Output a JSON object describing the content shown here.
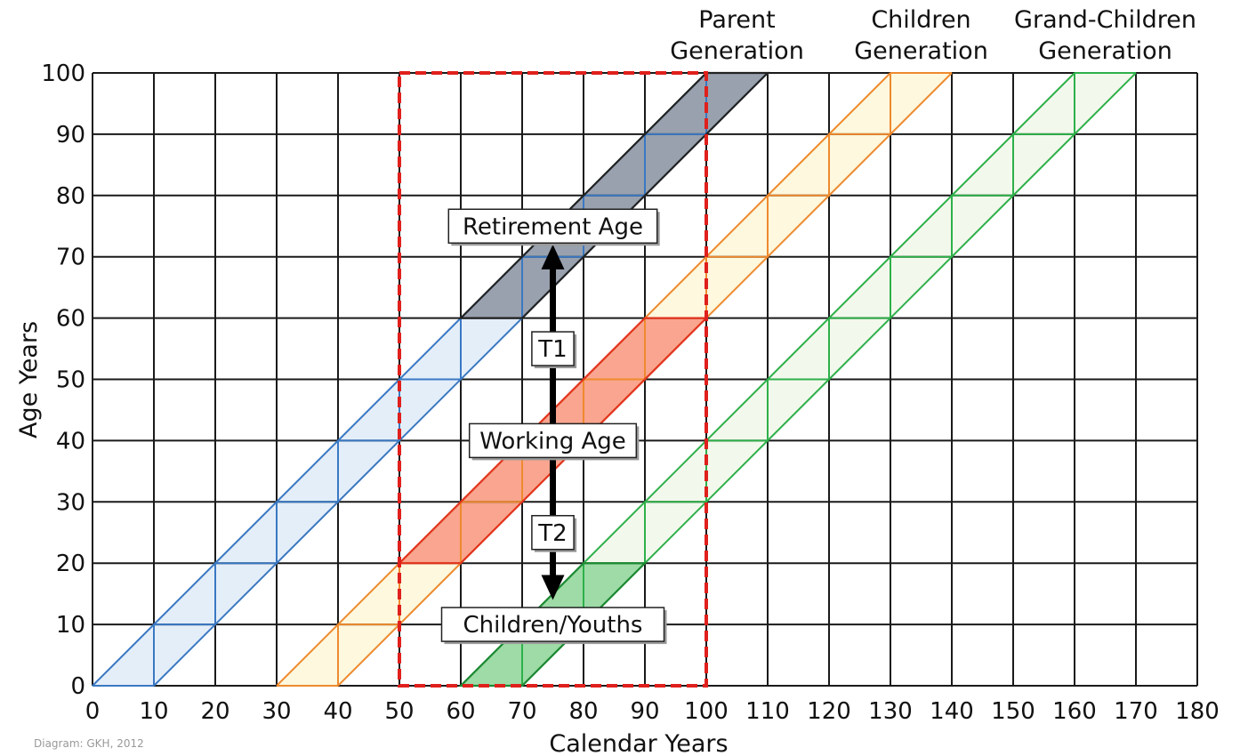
{
  "chart_data": {
    "type": "diagram",
    "xlabel": "Calendar Years",
    "ylabel": "Age Years",
    "xlim": [
      0,
      180
    ],
    "ylim": [
      0,
      100
    ],
    "x_ticks": [
      0,
      10,
      20,
      30,
      40,
      50,
      60,
      70,
      80,
      90,
      100,
      110,
      120,
      130,
      140,
      150,
      160,
      170,
      180
    ],
    "y_ticks": [
      0,
      10,
      20,
      30,
      40,
      50,
      60,
      70,
      80,
      90,
      100
    ],
    "grid": true,
    "highlight_window": {
      "x": [
        50,
        100
      ],
      "y": [
        0,
        100
      ],
      "color": "#e0201c",
      "style": "dashed"
    },
    "cohorts": [
      {
        "name": "Parent Generation",
        "birth_start": 0,
        "birth_end": 10,
        "line_color": "#3a78c2",
        "fill_color": "#ddeaf7",
        "fill_opacity": 0.8,
        "label_at": 105
      },
      {
        "name": "Children Generation",
        "birth_start": 30,
        "birth_end": 40,
        "line_color": "#ee8a2e",
        "fill_color": "#fdf6d6",
        "fill_opacity": 0.8,
        "label_at": 135
      },
      {
        "name": "Grand-Children Generation",
        "birth_start": 60,
        "birth_end": 70,
        "line_color": "#2eb04a",
        "fill_color": "#eef5e4",
        "fill_opacity": 0.7,
        "label_at": 165
      }
    ],
    "window_regions": [
      {
        "label": "Retirement Age",
        "birth_start": 0,
        "birth_end": 10,
        "age_range": [
          60,
          100
        ],
        "fill": "#7b8490",
        "opacity": 0.72,
        "edge": "#222222"
      },
      {
        "label": "Working Age",
        "birth_start": 30,
        "birth_end": 40,
        "age_range": [
          20,
          60
        ],
        "fill": "#f7826d",
        "opacity": 0.7,
        "edge": "#e2341e"
      },
      {
        "label": "Children/Youths",
        "birth_start": 60,
        "birth_end": 70,
        "age_range": [
          0,
          20
        ],
        "fill": "#57c26d",
        "opacity": 0.55,
        "edge": "#1e8a34"
      }
    ],
    "arrow": {
      "x": 75,
      "y_from": 14,
      "y_to": 72
    },
    "annotations": [
      {
        "text": "Retirement Age",
        "x": 75,
        "y": 75
      },
      {
        "text": "T1",
        "x": 75,
        "y": 55
      },
      {
        "text": "Working Age",
        "x": 75,
        "y": 40
      },
      {
        "text": "T2",
        "x": 75,
        "y": 25
      },
      {
        "text": "Children/Youths",
        "x": 75,
        "y": 10
      }
    ],
    "generation_labels": [
      {
        "line1": "Parent",
        "line2": "Generation",
        "x": 105
      },
      {
        "line1": "Children",
        "line2": "Generation",
        "x": 135
      },
      {
        "line1": "Grand-Children",
        "line2": "Generation",
        "x": 165
      }
    ],
    "credit": "Diagram: GKH, 2012"
  }
}
